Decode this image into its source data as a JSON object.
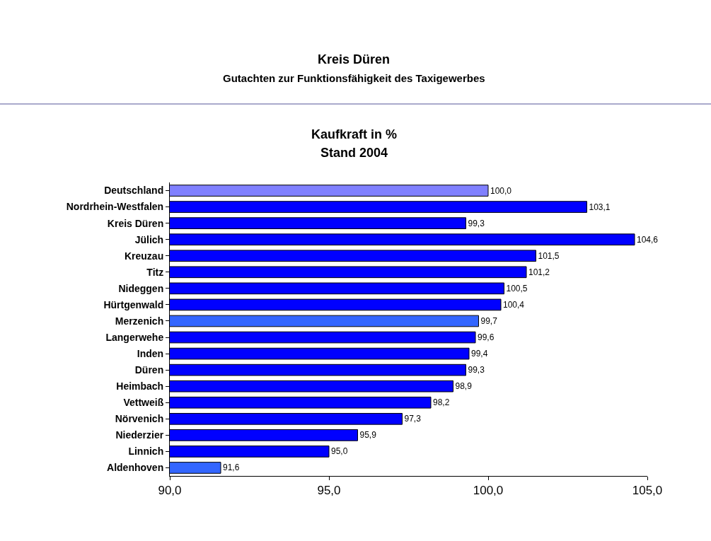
{
  "chart_data": {
    "type": "bar",
    "orientation": "horizontal",
    "title": "Kreis Düren",
    "subtitle": "Gutachten zur Funktionsfähigkeit des Taxigewerbes",
    "annotations": [
      "Kaufkraft in %",
      "Stand 2004"
    ],
    "categories": [
      "Deutschland",
      "Nordrhein-Westfalen",
      "Kreis Düren",
      "Jülich",
      "Kreuzau",
      "Titz",
      "Nideggen",
      "Hürtgenwald",
      "Merzenich",
      "Langerwehe",
      "Inden",
      "Düren",
      "Heimbach",
      "Vettweiß",
      "Nörvenich",
      "Niederzier",
      "Linnich",
      "Aldenhoven"
    ],
    "values": [
      100.0,
      103.1,
      99.3,
      104.6,
      101.5,
      101.2,
      100.5,
      100.4,
      99.7,
      99.6,
      99.4,
      99.3,
      98.9,
      98.2,
      97.3,
      95.9,
      95.0,
      91.6
    ],
    "value_labels": [
      "100,0",
      "103,1",
      "99,3",
      "104,6",
      "101,5",
      "101,2",
      "100,5",
      "100,4",
      "99,7",
      "99,6",
      "99,4",
      "99,3",
      "98,9",
      "98,2",
      "97,3",
      "95,9",
      "95,0",
      "91,6"
    ],
    "colors": [
      "#8080ff",
      "#0000ff",
      "#0000ff",
      "#0000ff",
      "#0000ff",
      "#0000ff",
      "#0000ff",
      "#0000ff",
      "#3366ff",
      "#0000ff",
      "#0000ff",
      "#0000ff",
      "#0000ff",
      "#0000ff",
      "#0000ff",
      "#0000ff",
      "#0000ff",
      "#3366ff"
    ],
    "xlim": [
      90,
      105
    ],
    "xticks": [
      {
        "value": 90,
        "label": "90,0"
      },
      {
        "value": 95,
        "label": "95,0"
      },
      {
        "value": 100,
        "label": "100,0"
      },
      {
        "value": 105,
        "label": "105,0"
      }
    ],
    "legend": false
  }
}
